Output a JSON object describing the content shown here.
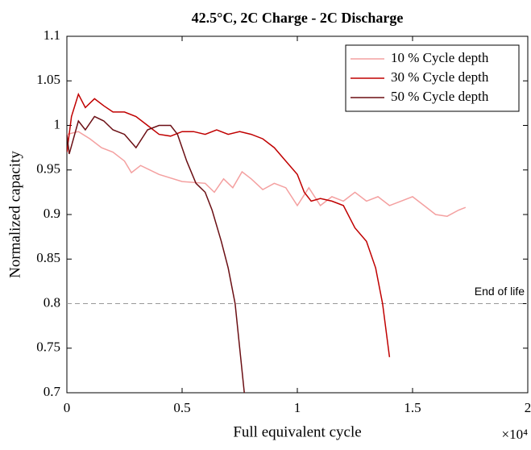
{
  "chart_data": {
    "type": "line",
    "title": "42.5°C, 2C Charge - 2C Discharge",
    "x_label": "Full equivalent cycle",
    "x_multiplier": "×10⁴",
    "y_label": "Normalized capacity",
    "xlim": [
      0,
      2
    ],
    "xticks": [
      0,
      0.5,
      1,
      1.5,
      2
    ],
    "ylim": [
      0.7,
      1.1
    ],
    "yticks": [
      0.7,
      0.75,
      0.8,
      0.85,
      0.9,
      0.95,
      1,
      1.05,
      1.1
    ],
    "reference_line": {
      "value": 0.8,
      "label": "End of life",
      "color": "#999999"
    },
    "legend": "top-right",
    "series": [
      {
        "name": "10 % Cycle depth",
        "color": "#f4a0a0",
        "x": [
          0,
          0.05,
          0.1,
          0.15,
          0.2,
          0.25,
          0.28,
          0.32,
          0.4,
          0.5,
          0.6,
          0.64,
          0.68,
          0.72,
          0.76,
          0.8,
          0.85,
          0.9,
          0.95,
          1.0,
          1.05,
          1.1,
          1.15,
          1.2,
          1.25,
          1.3,
          1.35,
          1.4,
          1.45,
          1.5,
          1.55,
          1.6,
          1.65,
          1.7,
          1.73
        ],
        "values": [
          0.99,
          0.993,
          0.985,
          0.975,
          0.97,
          0.96,
          0.947,
          0.955,
          0.945,
          0.937,
          0.935,
          0.925,
          0.94,
          0.93,
          0.948,
          0.94,
          0.928,
          0.935,
          0.93,
          0.91,
          0.93,
          0.91,
          0.92,
          0.915,
          0.925,
          0.915,
          0.92,
          0.91,
          0.915,
          0.92,
          0.91,
          0.9,
          0.898,
          0.905,
          0.908
        ]
      },
      {
        "name": "30 % Cycle depth",
        "color": "#c00000",
        "x": [
          0,
          0.02,
          0.05,
          0.08,
          0.12,
          0.16,
          0.2,
          0.25,
          0.3,
          0.35,
          0.4,
          0.45,
          0.5,
          0.55,
          0.6,
          0.65,
          0.7,
          0.75,
          0.8,
          0.85,
          0.9,
          0.95,
          1.0,
          1.03,
          1.06,
          1.1,
          1.15,
          1.2,
          1.25,
          1.3,
          1.34,
          1.37,
          1.4
        ],
        "values": [
          0.97,
          1.01,
          1.035,
          1.02,
          1.03,
          1.022,
          1.015,
          1.015,
          1.01,
          1.0,
          0.99,
          0.988,
          0.993,
          0.993,
          0.99,
          0.995,
          0.99,
          0.993,
          0.99,
          0.985,
          0.975,
          0.96,
          0.945,
          0.925,
          0.915,
          0.918,
          0.915,
          0.91,
          0.885,
          0.87,
          0.84,
          0.8,
          0.74
        ]
      },
      {
        "name": "50 % Cycle depth",
        "color": "#6b0f14",
        "x": [
          0,
          0.01,
          0.05,
          0.08,
          0.12,
          0.16,
          0.2,
          0.25,
          0.3,
          0.35,
          0.4,
          0.45,
          0.48,
          0.52,
          0.56,
          0.6,
          0.63,
          0.67,
          0.7,
          0.73,
          0.75,
          0.77
        ],
        "values": [
          0.99,
          0.968,
          1.005,
          0.995,
          1.01,
          1.005,
          0.995,
          0.99,
          0.975,
          0.995,
          1.0,
          1.0,
          0.99,
          0.96,
          0.935,
          0.925,
          0.905,
          0.87,
          0.84,
          0.8,
          0.75,
          0.7
        ]
      }
    ]
  }
}
